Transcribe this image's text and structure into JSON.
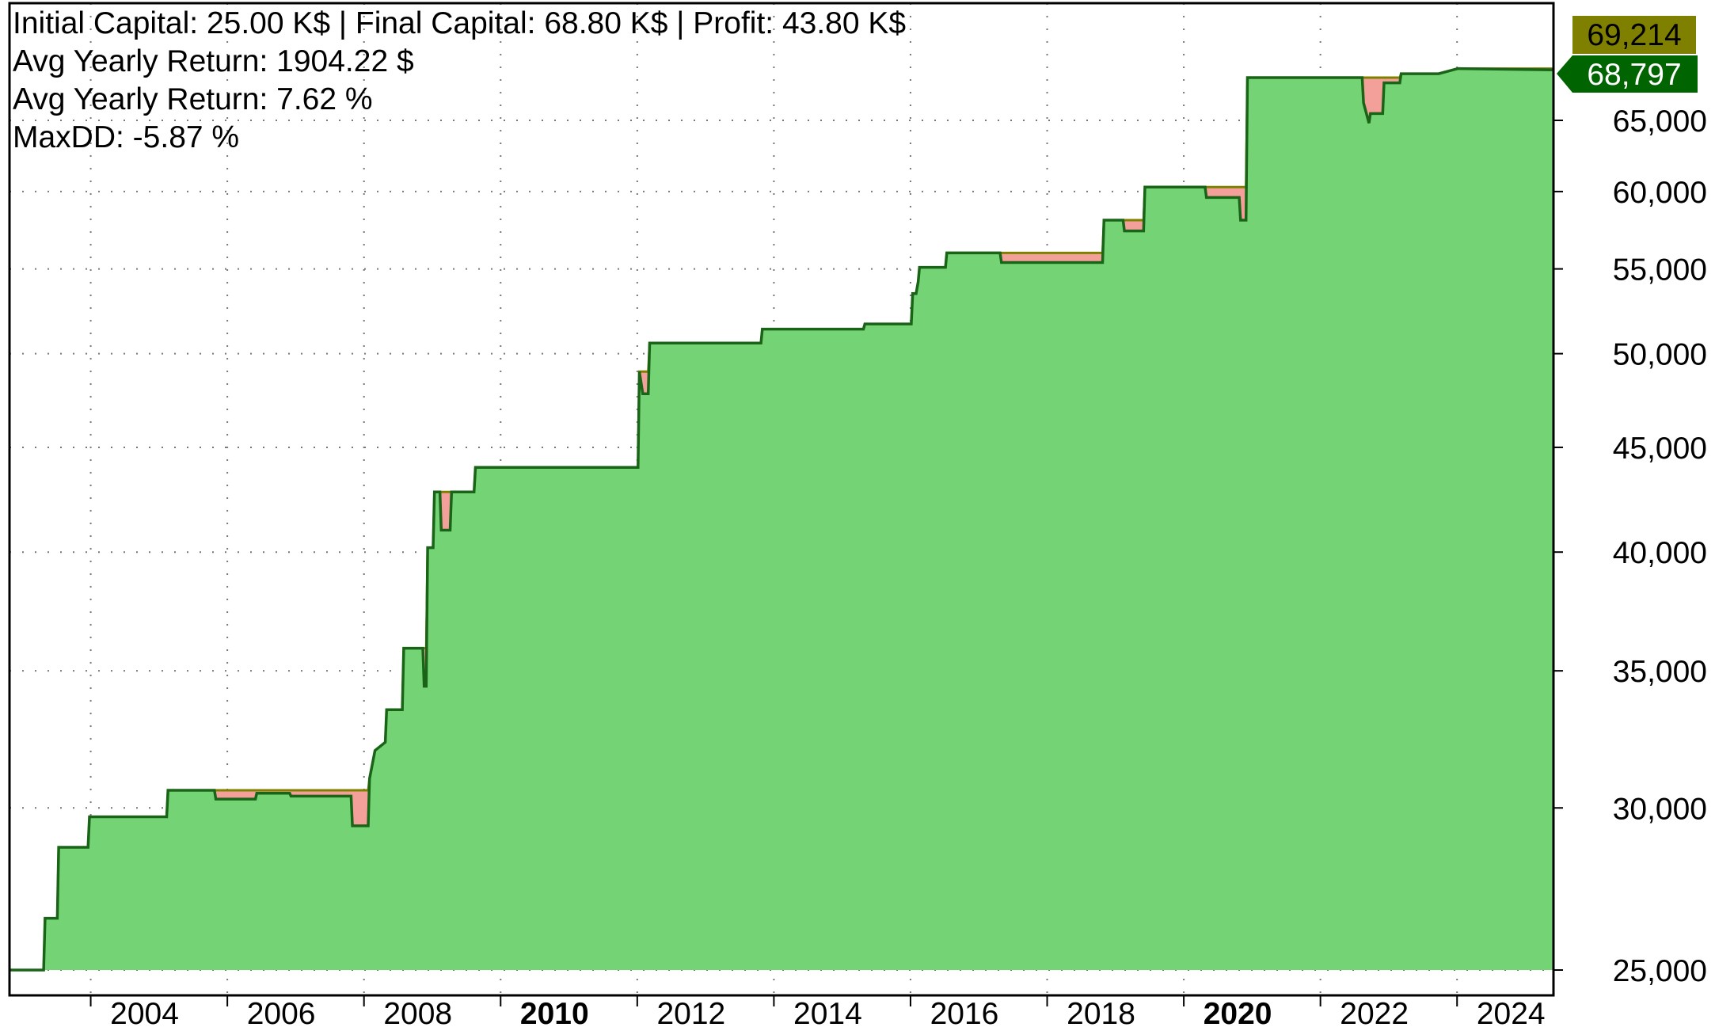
{
  "stats": {
    "line1": "Initial Capital: 25.00 K$ | Final Capital: 68.80 K$ | Profit: 43.80 K$",
    "line2": "Avg Yearly Return: 1904.22 $",
    "line3": "Avg Yearly Return: 7.62 %",
    "line4": "MaxDD: -5.87 %"
  },
  "price_tags": {
    "peak": {
      "label": "69,214",
      "bg": "#808000",
      "fg": "#000000"
    },
    "last": {
      "label": "68,797",
      "bg": "#006400",
      "fg": "#ffffff"
    }
  },
  "colors": {
    "area_fill": "#74d475",
    "equity_line": "#1a6418",
    "drawdown_fill": "#f4a09a",
    "peak_line": "#808000",
    "grid": "#777777"
  },
  "chart_data": {
    "type": "area",
    "title": "",
    "xlabel": "",
    "ylabel": "",
    "y_scale": "log",
    "ylim": [
      25000,
      69800
    ],
    "xlim": [
      2002.0,
      2024.6
    ],
    "x_ticks": [
      {
        "value": 2004,
        "label": "2004",
        "bold": false
      },
      {
        "value": 2006,
        "label": "2006",
        "bold": false
      },
      {
        "value": 2008,
        "label": "2008",
        "bold": false
      },
      {
        "value": 2010,
        "label": "2010",
        "bold": true
      },
      {
        "value": 2012,
        "label": "2012",
        "bold": false
      },
      {
        "value": 2014,
        "label": "2014",
        "bold": false
      },
      {
        "value": 2016,
        "label": "2016",
        "bold": false
      },
      {
        "value": 2018,
        "label": "2018",
        "bold": false
      },
      {
        "value": 2020,
        "label": "2020",
        "bold": true
      },
      {
        "value": 2022,
        "label": "2022",
        "bold": false
      },
      {
        "value": 2024,
        "label": "2024",
        "bold": false
      }
    ],
    "y_ticks": [
      {
        "value": 25000,
        "label": "25,000"
      },
      {
        "value": 30000,
        "label": "30,000"
      },
      {
        "value": 35000,
        "label": "35,000"
      },
      {
        "value": 40000,
        "label": "40,000"
      },
      {
        "value": 45000,
        "label": "45,000"
      },
      {
        "value": 50000,
        "label": "50,000"
      },
      {
        "value": 55000,
        "label": "55,000"
      },
      {
        "value": 60000,
        "label": "60,000"
      },
      {
        "value": 65000,
        "label": "65,000"
      }
    ],
    "grid": true,
    "series": [
      {
        "name": "",
        "x": [
          2002.0,
          2002.5,
          2002.52,
          2002.7,
          2002.72,
          2003.15,
          2003.17,
          2004.3,
          2004.32,
          2005.0,
          2005.02,
          2005.6,
          2005.62,
          2006.1,
          2006.12,
          2007.0,
          2007.02,
          2007.25,
          2007.27,
          2007.35,
          2007.5,
          2007.52,
          2007.75,
          2007.77,
          2008.05,
          2008.07,
          2008.1,
          2008.12,
          2008.2,
          2008.22,
          2008.3,
          2008.32,
          2008.45,
          2008.47,
          2008.8,
          2008.82,
          2011.2,
          2011.22,
          2011.27,
          2011.35,
          2011.37,
          2013.0,
          2013.02,
          2014.5,
          2014.52,
          2015.2,
          2015.22,
          2015.27,
          2015.3,
          2015.32,
          2015.7,
          2015.72,
          2016.5,
          2016.52,
          2018.0,
          2018.02,
          2018.3,
          2018.32,
          2018.6,
          2018.62,
          2019.5,
          2019.52,
          2020.0,
          2020.02,
          2020.1,
          2020.12,
          2021.8,
          2021.82,
          2021.9,
          2021.92,
          2022.1,
          2022.12,
          2022.35,
          2022.37,
          2022.9,
          2022.92,
          2023.2,
          2023.22,
          2024.6
        ],
        "y": [
          25000,
          25000,
          26500,
          26500,
          28700,
          28700,
          29700,
          29700,
          30600,
          30600,
          30300,
          30300,
          30500,
          30500,
          30400,
          30400,
          29400,
          29400,
          31000,
          32000,
          32300,
          33500,
          33500,
          35900,
          35900,
          34400,
          34400,
          40200,
          40200,
          42800,
          42800,
          41000,
          41000,
          42800,
          42800,
          44000,
          44000,
          49000,
          47800,
          47800,
          50600,
          50600,
          51400,
          51400,
          51700,
          51700,
          53500,
          53500,
          54200,
          55100,
          55100,
          56000,
          56000,
          55400,
          55400,
          58100,
          58100,
          57400,
          57400,
          60300,
          60300,
          59600,
          59600,
          58100,
          58100,
          68200,
          68200,
          66300,
          64800,
          65500,
          65500,
          67800,
          67800,
          68500,
          68500,
          68500,
          68900,
          68900,
          68797
        ]
      }
    ],
    "peak_values": [
      68800,
      69214
    ],
    "last_value": 68797,
    "peak_value": 69214
  }
}
